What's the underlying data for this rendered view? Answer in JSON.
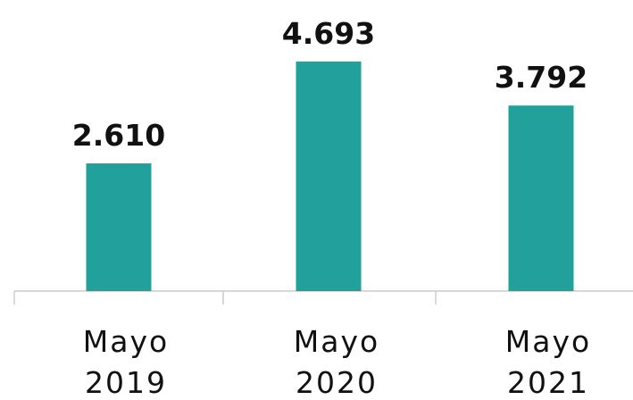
{
  "chart_data": {
    "type": "bar",
    "categories": [
      "Mayo 2019",
      "Mayo 2020",
      "Mayo 2021"
    ],
    "values": [
      2610,
      4693,
      3792
    ],
    "value_labels": [
      "2.610",
      "4.693",
      "3.792"
    ],
    "color": "#22a09c",
    "ylim": [
      0,
      5000
    ]
  }
}
